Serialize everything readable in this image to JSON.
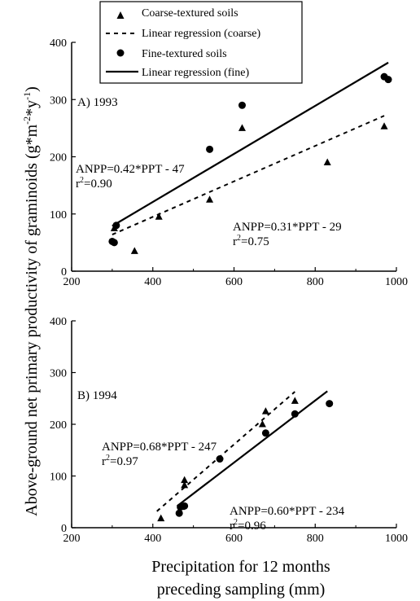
{
  "chart_data": [
    {
      "type": "scatter",
      "panel": "A) 1993",
      "xlim": [
        200,
        1000
      ],
      "ylim": [
        0,
        400
      ],
      "xticks": [
        200,
        400,
        600,
        800,
        1000
      ],
      "yticks": [
        0,
        100,
        200,
        300,
        400
      ],
      "series": [
        {
          "name": "Coarse-textured soils",
          "marker": "triangle",
          "points": [
            [
              305,
              75
            ],
            [
              355,
              35
            ],
            [
              415,
              95
            ],
            [
              540,
              125
            ],
            [
              620,
              250
            ],
            [
              830,
              190
            ],
            [
              970,
              253
            ]
          ]
        },
        {
          "name": "Linear regression (coarse)",
          "line": "dashed",
          "slope": 0.31,
          "intercept": -29,
          "x_range": [
            300,
            970
          ]
        },
        {
          "name": "Fine-textured soils",
          "marker": "circle",
          "points": [
            [
              300,
              52
            ],
            [
              305,
              50
            ],
            [
              310,
              80
            ],
            [
              540,
              213
            ],
            [
              620,
              290
            ],
            [
              970,
              340
            ],
            [
              980,
              335
            ]
          ]
        },
        {
          "name": "Linear regression (fine)",
          "line": "solid",
          "slope": 0.42,
          "intercept": -47,
          "x_range": [
            300,
            980
          ]
        }
      ],
      "annotations": [
        {
          "text": "ANPP=0.42*PPT - 47",
          "r2": "=0.90"
        },
        {
          "text": "ANPP=0.31*PPT - 29",
          "r2": "=0.75"
        }
      ]
    },
    {
      "type": "scatter",
      "panel": "B) 1994",
      "xlim": [
        200,
        1000
      ],
      "ylim": [
        0,
        400
      ],
      "xticks": [
        200,
        400,
        600,
        800,
        1000
      ],
      "yticks": [
        0,
        100,
        200,
        300,
        400
      ],
      "series": [
        {
          "name": "Coarse-textured soils",
          "marker": "triangle",
          "points": [
            [
              420,
              18
            ],
            [
              470,
              40
            ],
            [
              478,
              82
            ],
            [
              478,
              92
            ],
            [
              670,
              200
            ],
            [
              678,
              225
            ],
            [
              750,
              245
            ]
          ]
        },
        {
          "name": "Linear regression (coarse)",
          "line": "dashed",
          "slope": 0.68,
          "intercept": -247,
          "x_range": [
            410,
            750
          ]
        },
        {
          "name": "Fine-textured soils",
          "marker": "circle",
          "points": [
            [
              465,
              28
            ],
            [
              468,
              40
            ],
            [
              478,
              42
            ],
            [
              565,
              133
            ],
            [
              678,
              183
            ],
            [
              750,
              220
            ],
            [
              835,
              240
            ]
          ]
        },
        {
          "name": "Linear regression (fine)",
          "line": "solid",
          "slope": 0.6,
          "intercept": -234,
          "x_range": [
            460,
            830
          ]
        }
      ],
      "annotations": [
        {
          "text": "ANPP=0.68*PPT - 247",
          "r2": "=0.97"
        },
        {
          "text": "ANPP=0.60*PPT - 234",
          "r2": "=0.96"
        }
      ]
    }
  ],
  "legend": {
    "placement": "top",
    "entries": [
      "Coarse-textured soils",
      "Linear regression (coarse)",
      "Fine-textured soils",
      "Linear regression (fine)"
    ]
  },
  "ylabel": "Above-ground net primary productivity of graminoids (g*m",
  "ylabel_exp1": "-2",
  "ylabel_mid": "*y",
  "ylabel_exp2": "-1",
  "ylabel_end": ")",
  "xlabel_line1": "Precipitation for 12 months",
  "xlabel_line2": "preceding sampling (mm)"
}
